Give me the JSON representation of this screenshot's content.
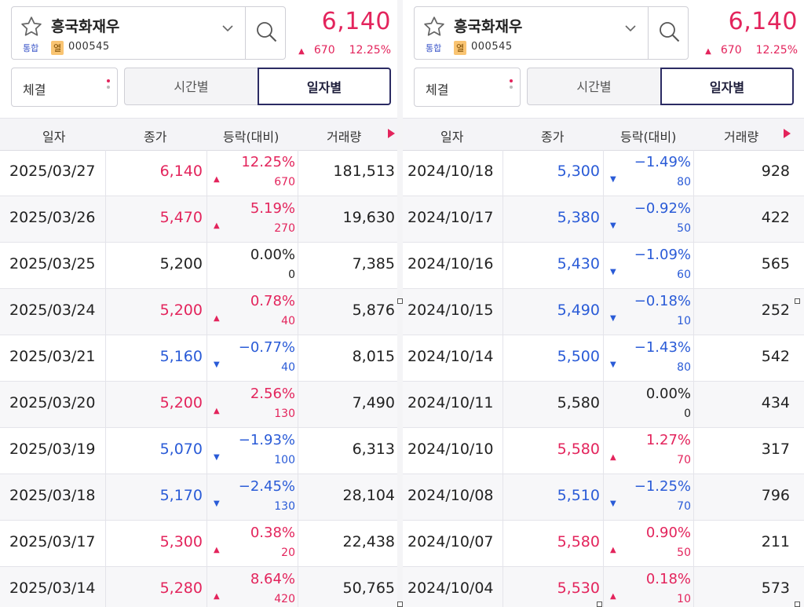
{
  "colors": {
    "up": "#e3245c",
    "down": "#2a5bd7",
    "flat": "#222222",
    "accent": "#2b2b63"
  },
  "panels": [
    {
      "stock_name": "흥국화재우",
      "tag_market": "통합",
      "tag_badge": "열",
      "stock_code": "000545",
      "price": "6,140",
      "change_amount": "670",
      "change_percent": "12.25%",
      "change_dir": "up",
      "select_label": "체결",
      "tabs": [
        "시간별",
        "일자별"
      ],
      "headers": [
        "일자",
        "종가",
        "등락(대비)",
        "거래량"
      ],
      "rows": [
        {
          "date": "2025/03/27",
          "close": "6,140",
          "pct": "12.25%",
          "diff": "670",
          "vol": "181,513",
          "dir": "up"
        },
        {
          "date": "2025/03/26",
          "close": "5,470",
          "pct": "5.19%",
          "diff": "270",
          "vol": "19,630",
          "dir": "up"
        },
        {
          "date": "2025/03/25",
          "close": "5,200",
          "pct": "0.00%",
          "diff": "0",
          "vol": "7,385",
          "dir": "flat"
        },
        {
          "date": "2025/03/24",
          "close": "5,200",
          "pct": "0.78%",
          "diff": "40",
          "vol": "5,876",
          "dir": "up"
        },
        {
          "date": "2025/03/21",
          "close": "5,160",
          "pct": "−0.77%",
          "diff": "40",
          "vol": "8,015",
          "dir": "down"
        },
        {
          "date": "2025/03/20",
          "close": "5,200",
          "pct": "2.56%",
          "diff": "130",
          "vol": "7,490",
          "dir": "up"
        },
        {
          "date": "2025/03/19",
          "close": "5,070",
          "pct": "−1.93%",
          "diff": "100",
          "vol": "6,313",
          "dir": "down"
        },
        {
          "date": "2025/03/18",
          "close": "5,170",
          "pct": "−2.45%",
          "diff": "130",
          "vol": "28,104",
          "dir": "down"
        },
        {
          "date": "2025/03/17",
          "close": "5,300",
          "pct": "0.38%",
          "diff": "20",
          "vol": "22,438",
          "dir": "up"
        },
        {
          "date": "2025/03/14",
          "close": "5,280",
          "pct": "8.64%",
          "diff": "420",
          "vol": "50,765",
          "dir": "up"
        }
      ]
    },
    {
      "stock_name": "흥국화재우",
      "tag_market": "통합",
      "tag_badge": "열",
      "stock_code": "000545",
      "price": "6,140",
      "change_amount": "670",
      "change_percent": "12.25%",
      "change_dir": "up",
      "select_label": "체결",
      "tabs": [
        "시간별",
        "일자별"
      ],
      "headers": [
        "일자",
        "종가",
        "등락(대비)",
        "거래량"
      ],
      "rows": [
        {
          "date": "2024/10/18",
          "close": "5,300",
          "pct": "−1.49%",
          "diff": "80",
          "vol": "928",
          "dir": "down"
        },
        {
          "date": "2024/10/17",
          "close": "5,380",
          "pct": "−0.92%",
          "diff": "50",
          "vol": "422",
          "dir": "down"
        },
        {
          "date": "2024/10/16",
          "close": "5,430",
          "pct": "−1.09%",
          "diff": "60",
          "vol": "565",
          "dir": "down"
        },
        {
          "date": "2024/10/15",
          "close": "5,490",
          "pct": "−0.18%",
          "diff": "10",
          "vol": "252",
          "dir": "down"
        },
        {
          "date": "2024/10/14",
          "close": "5,500",
          "pct": "−1.43%",
          "diff": "80",
          "vol": "542",
          "dir": "down"
        },
        {
          "date": "2024/10/11",
          "close": "5,580",
          "pct": "0.00%",
          "diff": "0",
          "vol": "434",
          "dir": "flat"
        },
        {
          "date": "2024/10/10",
          "close": "5,580",
          "pct": "1.27%",
          "diff": "70",
          "vol": "317",
          "dir": "up"
        },
        {
          "date": "2024/10/08",
          "close": "5,510",
          "pct": "−1.25%",
          "diff": "70",
          "vol": "796",
          "dir": "down"
        },
        {
          "date": "2024/10/07",
          "close": "5,580",
          "pct": "0.90%",
          "diff": "50",
          "vol": "211",
          "dir": "up"
        },
        {
          "date": "2024/10/04",
          "close": "5,530",
          "pct": "0.18%",
          "diff": "10",
          "vol": "573",
          "dir": "up"
        }
      ]
    }
  ]
}
